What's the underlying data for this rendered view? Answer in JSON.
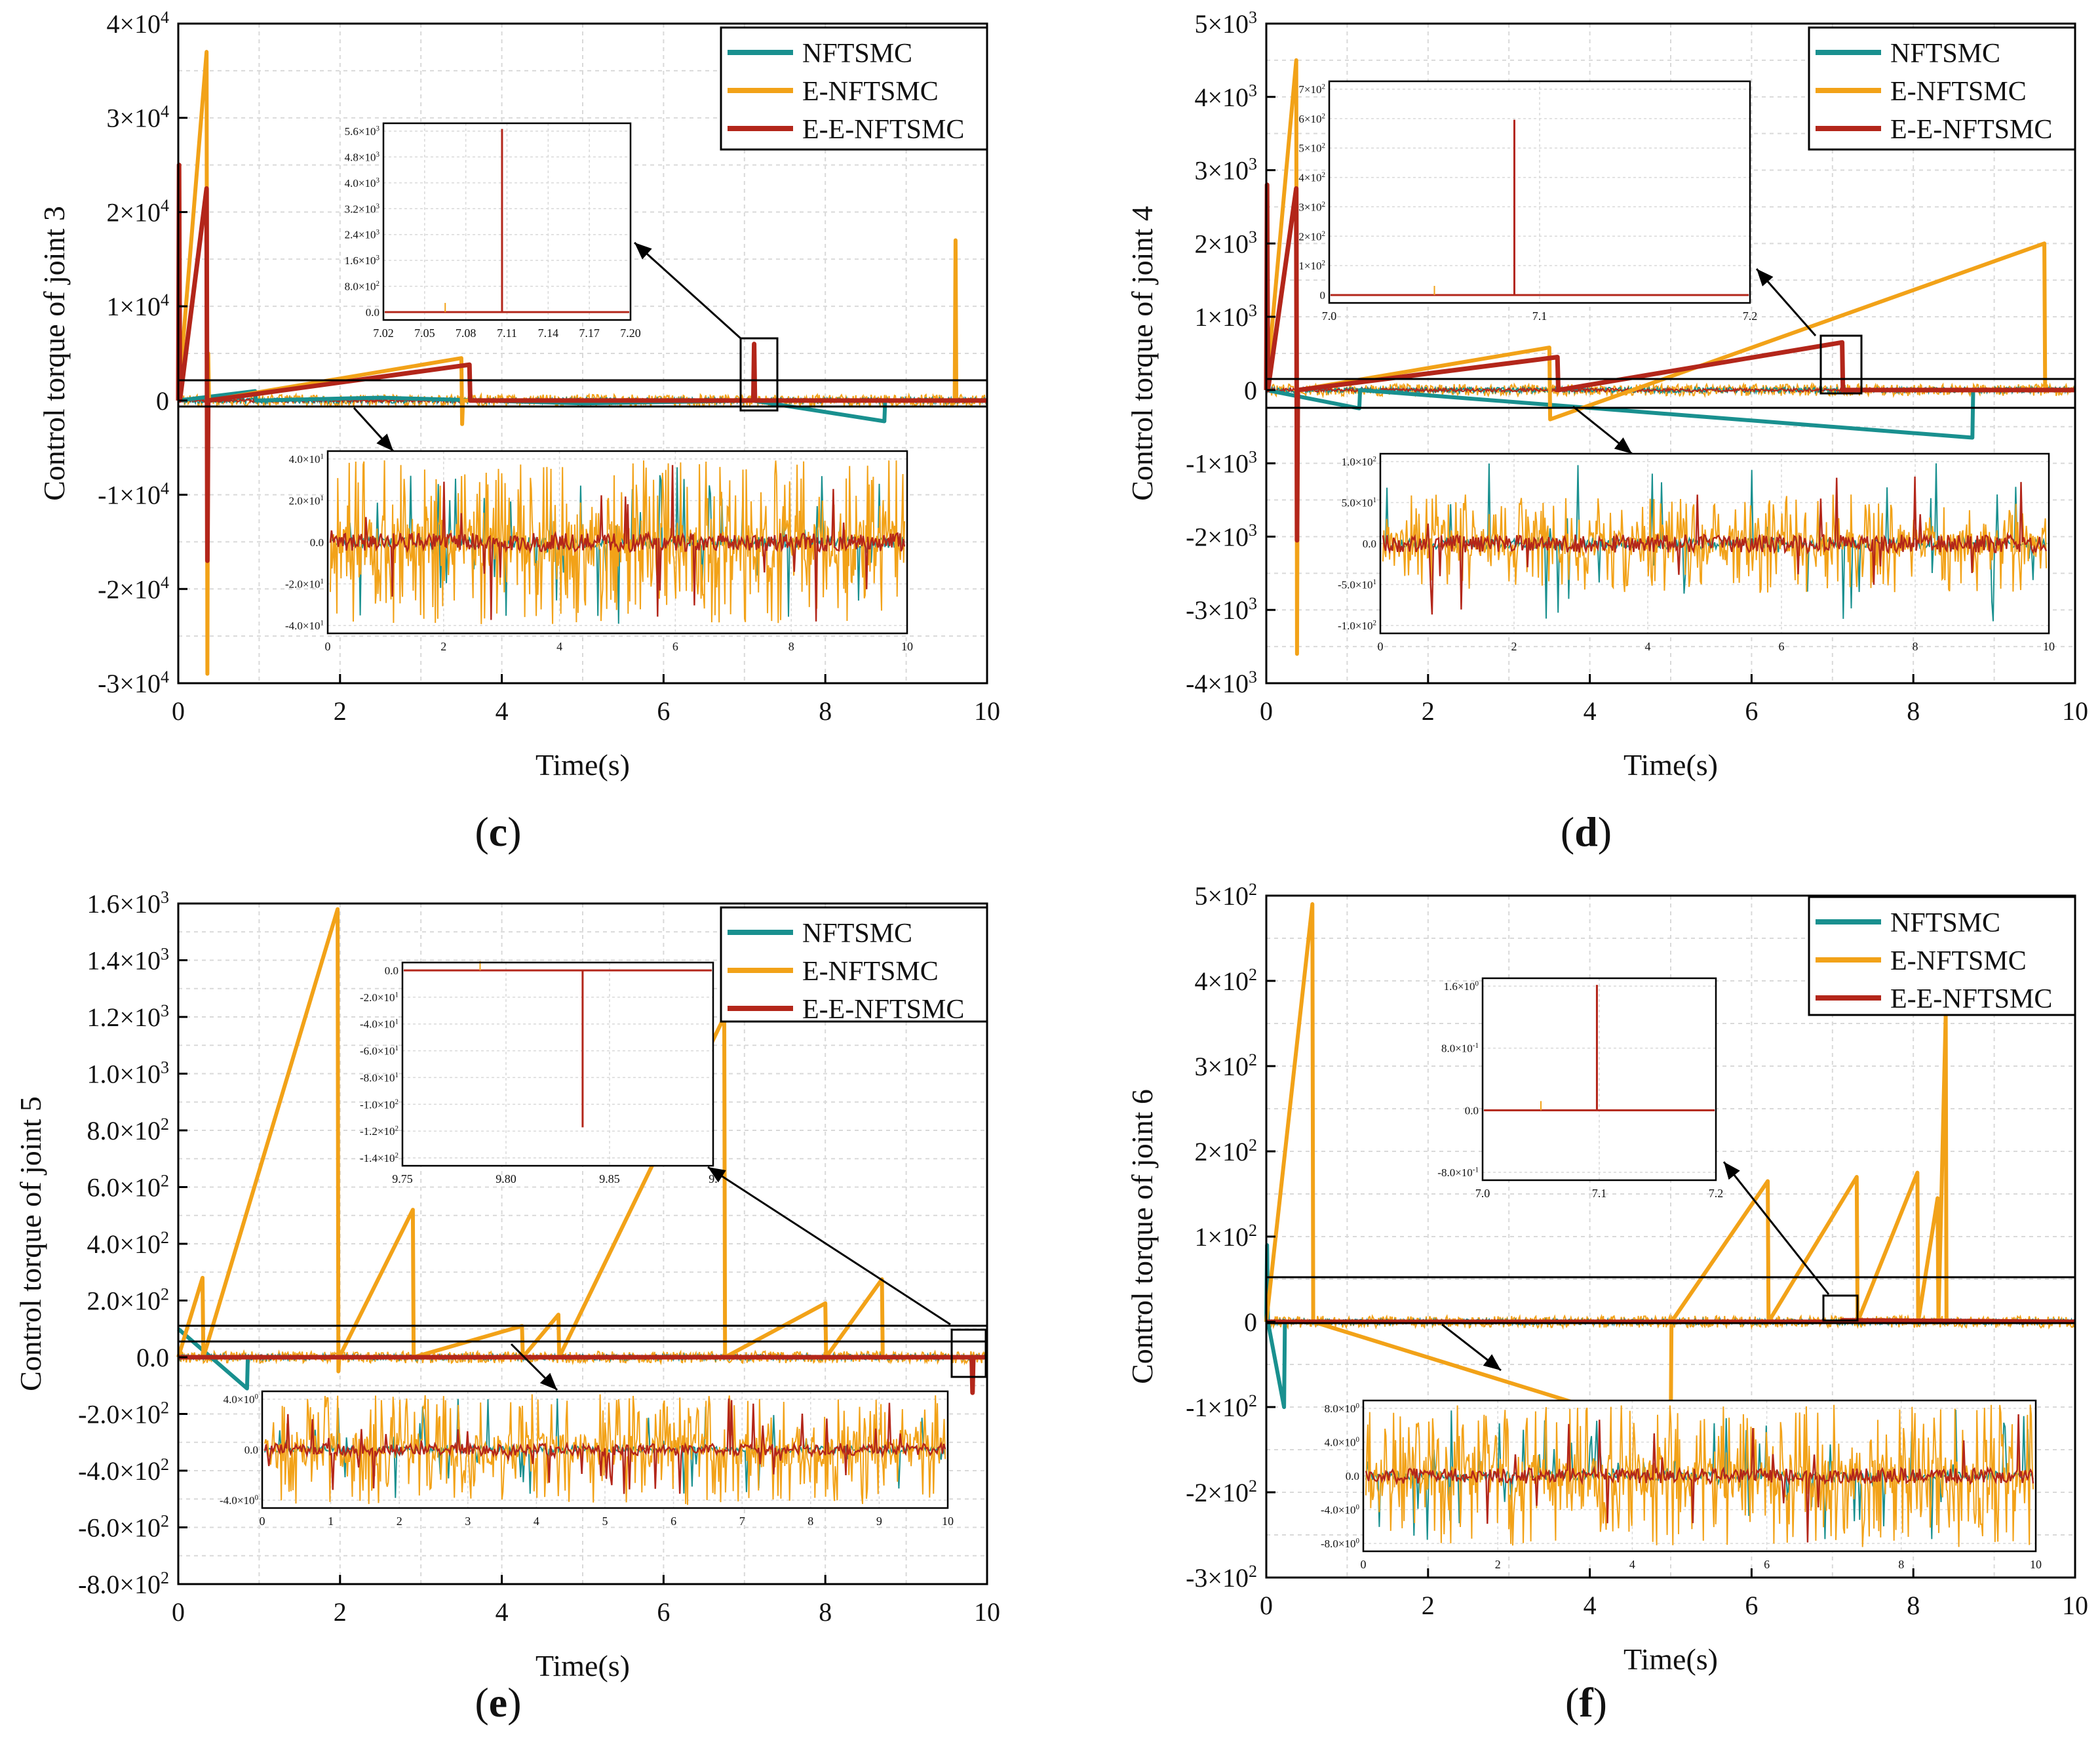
{
  "colors": {
    "NFTSMC": "#19908f",
    "E-NFTSMC": "#f2a218",
    "E-E-NFTSMC": "#b3261a",
    "axis": "#000000",
    "grid": "#d9d9d9"
  },
  "chart_data": [
    {
      "panel": "(c)",
      "type": "line",
      "xlabel": "Time(s)",
      "ylabel": "Control torque of joint 3",
      "xlim": [
        0,
        10
      ],
      "ylim": [
        -30000,
        40000
      ],
      "xticks": [
        "0",
        "2",
        "4",
        "6",
        "8",
        "10"
      ],
      "yticks": [
        {
          "m": "-3",
          "e": "4"
        },
        {
          "m": "-2",
          "e": "4"
        },
        {
          "m": "-1",
          "e": "4"
        },
        {
          "m": "0",
          "e": ""
        },
        {
          "m": "1",
          "e": "4"
        },
        {
          "m": "2",
          "e": "4"
        },
        {
          "m": "3",
          "e": "4"
        },
        {
          "m": "4",
          "e": "4"
        }
      ],
      "legend": [
        "NFTSMC",
        "E-NFTSMC",
        "E-E-NFTSMC"
      ],
      "legend_position": "top-right",
      "grid": true,
      "series": [
        {
          "name": "NFTSMC",
          "x": [
            0,
            0.95,
            0.96,
            2.5,
            5.0,
            7.1,
            8.73,
            8.74,
            10
          ],
          "values": [
            0,
            1000,
            0,
            300,
            -300,
            0,
            -2200,
            0,
            0
          ]
        },
        {
          "name": "E-NFTSMC",
          "x": [
            0,
            0.35,
            0.36,
            0.37,
            0.38,
            3.5,
            3.51,
            3.52,
            9.6,
            9.61,
            9.62,
            10
          ],
          "values": [
            0,
            37000,
            -29000,
            5000,
            0,
            4500,
            -2500,
            0,
            0,
            17000,
            0,
            0
          ]
        },
        {
          "name": "E-E-NFTSMC",
          "x": [
            0,
            0.01,
            0.02,
            0.35,
            0.36,
            0.37,
            3.6,
            3.61,
            7.11,
            7.12,
            7.13,
            10
          ],
          "values": [
            0,
            25000,
            0,
            22500,
            -17000,
            0,
            3800,
            0,
            0,
            6000,
            0,
            0
          ]
        }
      ],
      "insets": [
        {
          "xticks": [
            "7.02",
            "7.05",
            "7.08",
            "7.11",
            "7.14",
            "7.17",
            "7.20"
          ],
          "yticks": [
            {
              "m": "0.0",
              "e": ""
            },
            {
              "m": "8.0",
              "e": "2"
            },
            {
              "m": "1.6",
              "e": "3"
            },
            {
              "m": "2.4",
              "e": "3"
            },
            {
              "m": "3.2",
              "e": "3"
            },
            {
              "m": "4.0",
              "e": "3"
            },
            {
              "m": "4.8",
              "e": "3"
            },
            {
              "m": "5.6",
              "e": "3"
            }
          ]
        },
        {
          "xticks": [
            "0",
            "2",
            "4",
            "6",
            "8",
            "10"
          ],
          "yticks": [
            {
              "m": "-4.0",
              "e": "1"
            },
            {
              "m": "-2.0",
              "e": "1"
            },
            {
              "m": "0.0",
              "e": ""
            },
            {
              "m": "2.0",
              "e": "1"
            },
            {
              "m": "4.0",
              "e": "1"
            }
          ]
        }
      ]
    },
    {
      "panel": "(d)",
      "type": "line",
      "xlabel": "Time(s)",
      "ylabel": "Control torque of joint 4",
      "xlim": [
        0,
        10
      ],
      "ylim": [
        -4000,
        5000
      ],
      "xticks": [
        "0",
        "2",
        "4",
        "6",
        "8",
        "10"
      ],
      "yticks": [
        {
          "m": "-4",
          "e": "3"
        },
        {
          "m": "-3",
          "e": "3"
        },
        {
          "m": "-2",
          "e": "3"
        },
        {
          "m": "-1",
          "e": "3"
        },
        {
          "m": "0",
          "e": ""
        },
        {
          "m": "1",
          "e": "3"
        },
        {
          "m": "2",
          "e": "3"
        },
        {
          "m": "3",
          "e": "3"
        },
        {
          "m": "4",
          "e": "3"
        },
        {
          "m": "5",
          "e": "3"
        }
      ],
      "legend": [
        "NFTSMC",
        "E-NFTSMC",
        "E-E-NFTSMC"
      ],
      "legend_position": "top-right",
      "grid": true,
      "series": [
        {
          "name": "NFTSMC",
          "x": [
            0,
            1.15,
            1.16,
            8.73,
            8.74,
            10
          ],
          "values": [
            0,
            -250,
            0,
            -650,
            0,
            0
          ]
        },
        {
          "name": "E-NFTSMC",
          "x": [
            0,
            0.37,
            0.38,
            0.39,
            3.5,
            3.51,
            9.62,
            9.63,
            10
          ],
          "values": [
            0,
            4500,
            -3600,
            0,
            580,
            -400,
            2000,
            0,
            0
          ]
        },
        {
          "name": "E-E-NFTSMC",
          "x": [
            0,
            0.01,
            0.02,
            0.37,
            0.38,
            0.39,
            3.6,
            3.61,
            7.12,
            7.13,
            10
          ],
          "values": [
            0,
            2800,
            0,
            2750,
            -2050,
            0,
            450,
            0,
            650,
            0,
            0
          ]
        }
      ],
      "insets": [
        {
          "xticks": [
            "7.0",
            "7.1",
            "7.2"
          ],
          "yticks": [
            {
              "m": "0",
              "e": ""
            },
            {
              "m": "1",
              "e": "2"
            },
            {
              "m": "2",
              "e": "2"
            },
            {
              "m": "3",
              "e": "2"
            },
            {
              "m": "4",
              "e": "2"
            },
            {
              "m": "5",
              "e": "2"
            },
            {
              "m": "6",
              "e": "2"
            },
            {
              "m": "7",
              "e": "2"
            }
          ]
        },
        {
          "xticks": [
            "0",
            "2",
            "4",
            "6",
            "8",
            "10"
          ],
          "yticks": [
            {
              "m": "-1.0",
              "e": "2"
            },
            {
              "m": "-5.0",
              "e": "1"
            },
            {
              "m": "0.0",
              "e": ""
            },
            {
              "m": "5.0",
              "e": "1"
            },
            {
              "m": "1.0",
              "e": "2"
            }
          ]
        }
      ]
    },
    {
      "panel": "(e)",
      "type": "line",
      "xlabel": "Time(s)",
      "ylabel": "Control torque of joint 5",
      "xlim": [
        0,
        10
      ],
      "ylim": [
        -800,
        1600
      ],
      "xticks": [
        "0",
        "2",
        "4",
        "6",
        "8",
        "10"
      ],
      "yticks": [
        {
          "m": "-8.0",
          "e": "2"
        },
        {
          "m": "-6.0",
          "e": "2"
        },
        {
          "m": "-4.0",
          "e": "2"
        },
        {
          "m": "-2.0",
          "e": "2"
        },
        {
          "m": "0.0",
          "e": ""
        },
        {
          "m": "2.0",
          "e": "2"
        },
        {
          "m": "4.0",
          "e": "2"
        },
        {
          "m": "6.0",
          "e": "2"
        },
        {
          "m": "8.0",
          "e": "2"
        },
        {
          "m": "1.0",
          "e": "3"
        },
        {
          "m": "1.2",
          "e": "3"
        },
        {
          "m": "1.4",
          "e": "3"
        },
        {
          "m": "1.6",
          "e": "3"
        }
      ],
      "legend": [
        "NFTSMC",
        "E-NFTSMC",
        "E-E-NFTSMC"
      ],
      "legend_position": "top-right",
      "grid": true,
      "series": [
        {
          "name": "NFTSMC",
          "x": [
            0,
            0.85,
            0.86,
            10
          ],
          "values": [
            100,
            -110,
            0,
            0
          ]
        },
        {
          "name": "E-NFTSMC",
          "x": [
            0,
            0.3,
            0.31,
            1.97,
            1.98,
            1.99,
            2.9,
            2.91,
            4.25,
            4.26,
            4.7,
            4.71,
            6.75,
            6.76,
            8.0,
            8.01,
            8.7,
            8.71,
            10
          ],
          "values": [
            0,
            280,
            0,
            1580,
            -50,
            0,
            520,
            0,
            110,
            0,
            150,
            0,
            1200,
            0,
            190,
            0,
            275,
            0,
            0
          ]
        },
        {
          "name": "E-E-NFTSMC",
          "x": [
            0,
            9.81,
            9.82,
            9.83,
            10
          ],
          "values": [
            0,
            0,
            -125,
            0,
            0
          ]
        }
      ],
      "insets": [
        {
          "xticks": [
            "9.75",
            "9.80",
            "9.85",
            "9."
          ],
          "yticks": [
            {
              "m": "-1.4",
              "e": "2"
            },
            {
              "m": "-1.2",
              "e": "2"
            },
            {
              "m": "-1.0",
              "e": "2"
            },
            {
              "m": "-8.0",
              "e": "1"
            },
            {
              "m": "-6.0",
              "e": "1"
            },
            {
              "m": "-4.0",
              "e": "1"
            },
            {
              "m": "-2.0",
              "e": "1"
            },
            {
              "m": "0.0",
              "e": ""
            }
          ]
        },
        {
          "xticks": [
            "0",
            "1",
            "2",
            "3",
            "4",
            "5",
            "6",
            "7",
            "8",
            "9",
            "10"
          ],
          "yticks": [
            {
              "m": "-4.0",
              "e": "0"
            },
            {
              "m": "0.0",
              "e": ""
            },
            {
              "m": "4.0",
              "e": "0"
            }
          ]
        }
      ]
    },
    {
      "panel": "(f)",
      "type": "line",
      "xlabel": "Time(s)",
      "ylabel": "Control torque of joint 6",
      "xlim": [
        0,
        10
      ],
      "ylim": [
        -300,
        500
      ],
      "xticks": [
        "0",
        "2",
        "4",
        "6",
        "8",
        "10"
      ],
      "yticks": [
        {
          "m": "-3",
          "e": "2"
        },
        {
          "m": "-2",
          "e": "2"
        },
        {
          "m": "-1",
          "e": "2"
        },
        {
          "m": "0",
          "e": ""
        },
        {
          "m": "1",
          "e": "2"
        },
        {
          "m": "2",
          "e": "2"
        },
        {
          "m": "3",
          "e": "2"
        },
        {
          "m": "4",
          "e": "2"
        },
        {
          "m": "5",
          "e": "2"
        }
      ],
      "legend": [
        "NFTSMC",
        "E-NFTSMC",
        "E-E-NFTSMC"
      ],
      "legend_position": "top-right",
      "grid": true,
      "series": [
        {
          "name": "NFTSMC",
          "x": [
            0,
            0.01,
            0.02,
            0.22,
            0.23,
            10
          ],
          "values": [
            0,
            90,
            0,
            -100,
            0,
            0
          ]
        },
        {
          "name": "E-NFTSMC",
          "x": [
            0,
            0.57,
            0.58,
            5.0,
            5.01,
            6.2,
            6.21,
            7.3,
            7.31,
            8.05,
            8.06,
            8.3,
            8.31,
            8.4,
            8.41,
            10
          ],
          "values": [
            0,
            490,
            0,
            -130,
            0,
            165,
            0,
            170,
            0,
            175,
            0,
            145,
            0,
            360,
            0,
            0
          ]
        },
        {
          "name": "E-E-NFTSMC",
          "x": [
            0,
            7.11,
            7.12,
            10
          ],
          "values": [
            0,
            0,
            1.8,
            0
          ]
        }
      ],
      "insets": [
        {
          "xticks": [
            "7.0",
            "7.1",
            "7.2"
          ],
          "yticks": [
            {
              "m": "-8.0",
              "e": "-1"
            },
            {
              "m": "0.0",
              "e": ""
            },
            {
              "m": "8.0",
              "e": "-1"
            },
            {
              "m": "1.6",
              "e": "0"
            }
          ]
        },
        {
          "xticks": [
            "0",
            "2",
            "4",
            "6",
            "8",
            "10"
          ],
          "yticks": [
            {
              "m": "-8.0",
              "e": "0"
            },
            {
              "m": "-4.0",
              "e": "0"
            },
            {
              "m": "0.0",
              "e": ""
            },
            {
              "m": "4.0",
              "e": "0"
            },
            {
              "m": "8.0",
              "e": "0"
            }
          ]
        }
      ]
    }
  ]
}
